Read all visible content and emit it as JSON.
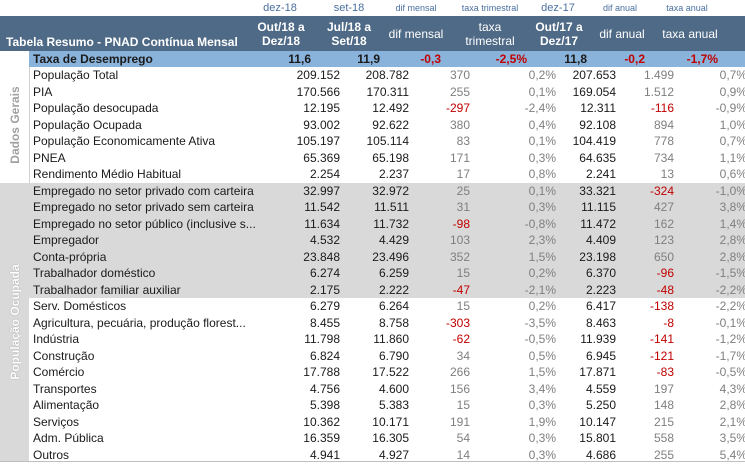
{
  "header": {
    "title": "Tabela Resumo - PNAD Contínua Mensal",
    "top": [
      "dez-18",
      "set-18",
      "dif mensal",
      "taxa trimestral",
      "dez-17",
      "dif anual",
      "taxa anual"
    ],
    "cols": [
      {
        "l1": "Out/18 a",
        "l2": "Dez/18"
      },
      {
        "l1": "Jul/18 a",
        "l2": "Set/18"
      },
      {
        "l1": "dif mensal",
        "l2": ""
      },
      {
        "l1": "taxa",
        "l2": "trimestral"
      },
      {
        "l1": "Out/17 a",
        "l2": "Dez/17"
      },
      {
        "l1": "dif anual",
        "l2": ""
      },
      {
        "l1": "taxa anual",
        "l2": ""
      }
    ]
  },
  "unemployment": {
    "label": "Taxa de Desemprego",
    "values": [
      "11,6",
      "11,9",
      "-0,3",
      "-2,5%",
      "11,8",
      "-0,2",
      "-1,7%"
    ]
  },
  "sections": {
    "dados": "Dados Gerais",
    "ocupada": "População Ocupada"
  },
  "rows": [
    {
      "label": "População Total",
      "values": [
        "209.152",
        "208.782",
        "370",
        "0,2%",
        "207.653",
        "1.499",
        "0,7%"
      ]
    },
    {
      "label": "PIA",
      "values": [
        "170.566",
        "170.311",
        "255",
        "0,1%",
        "169.054",
        "1.512",
        "0,9%"
      ]
    },
    {
      "label": "População desocupada",
      "values": [
        "12.195",
        "12.492",
        "-297",
        "-2,4%",
        "12.311",
        "-116",
        "-0,9%"
      ]
    },
    {
      "label": "População Ocupada",
      "values": [
        "93.002",
        "92.622",
        "380",
        "0,4%",
        "92.108",
        "894",
        "1,0%"
      ]
    },
    {
      "label": "População Economicamente Ativa",
      "values": [
        "105.197",
        "105.114",
        "83",
        "0,1%",
        "104.419",
        "778",
        "0,7%"
      ]
    },
    {
      "label": "PNEA",
      "values": [
        "65.369",
        "65.198",
        "171",
        "0,3%",
        "64.635",
        "734",
        "1,1%"
      ]
    },
    {
      "label": "Rendimento Médio Habitual",
      "values": [
        "2.254",
        "2.237",
        "17",
        "0,8%",
        "2.241",
        "13",
        "0,6%"
      ]
    },
    {
      "label": "Empregado no setor privado com carteira",
      "values": [
        "32.997",
        "32.972",
        "25",
        "0,1%",
        "33.321",
        "-324",
        "-1,0%"
      ]
    },
    {
      "label": "Empregado no setor privado sem carteira",
      "values": [
        "11.542",
        "11.511",
        "31",
        "0,3%",
        "11.115",
        "427",
        "3,8%"
      ]
    },
    {
      "label": "Empregado no setor público (inclusive s...",
      "values": [
        "11.634",
        "11.732",
        "-98",
        "-0,8%",
        "11.472",
        "162",
        "1,4%"
      ]
    },
    {
      "label": "Empregador",
      "values": [
        "4.532",
        "4.429",
        "103",
        "2,3%",
        "4.409",
        "123",
        "2,8%"
      ]
    },
    {
      "label": "Conta-própria",
      "values": [
        "23.848",
        "23.496",
        "352",
        "1,5%",
        "23.198",
        "650",
        "2,8%"
      ]
    },
    {
      "label": "Trabalhador doméstico",
      "values": [
        "6.274",
        "6.259",
        "15",
        "0,2%",
        "6.370",
        "-96",
        "-1,5%"
      ]
    },
    {
      "label": "Trabalhador familiar auxiliar",
      "values": [
        "2.175",
        "2.222",
        "-47",
        "-2,1%",
        "2.223",
        "-48",
        "-2,2%"
      ]
    },
    {
      "label": "Serv. Domésticos",
      "values": [
        "6.279",
        "6.264",
        "15",
        "0,2%",
        "6.417",
        "-138",
        "-2,2%"
      ]
    },
    {
      "label": "Agricultura, pecuária, produção florest...",
      "values": [
        "8.455",
        "8.758",
        "-303",
        "-3,5%",
        "8.463",
        "-8",
        "-0,1%"
      ]
    },
    {
      "label": "Indústria",
      "values": [
        "11.798",
        "11.860",
        "-62",
        "-0,5%",
        "11.939",
        "-141",
        "-1,2%"
      ]
    },
    {
      "label": "Construção",
      "values": [
        "6.824",
        "6.790",
        "34",
        "0,5%",
        "6.945",
        "-121",
        "-1,7%"
      ]
    },
    {
      "label": "Comércio",
      "values": [
        "17.788",
        "17.522",
        "266",
        "1,5%",
        "17.871",
        "-83",
        "-0,5%"
      ]
    },
    {
      "label": "Transportes",
      "values": [
        "4.756",
        "4.600",
        "156",
        "3,4%",
        "4.559",
        "197",
        "4,3%"
      ]
    },
    {
      "label": "Alimentação",
      "values": [
        "5.398",
        "5.383",
        "15",
        "0,3%",
        "5.250",
        "148",
        "2,8%"
      ]
    },
    {
      "label": "Serviços",
      "values": [
        "10.362",
        "10.171",
        "191",
        "1,9%",
        "10.147",
        "215",
        "2,1%"
      ]
    },
    {
      "label": "Adm. Pública",
      "values": [
        "16.359",
        "16.305",
        "54",
        "0,3%",
        "15.801",
        "558",
        "3,5%"
      ]
    },
    {
      "label": "Outros",
      "values": [
        "4.941",
        "4.927",
        "14",
        "0,3%",
        "4.686",
        "255",
        "5,4%"
      ]
    }
  ]
}
